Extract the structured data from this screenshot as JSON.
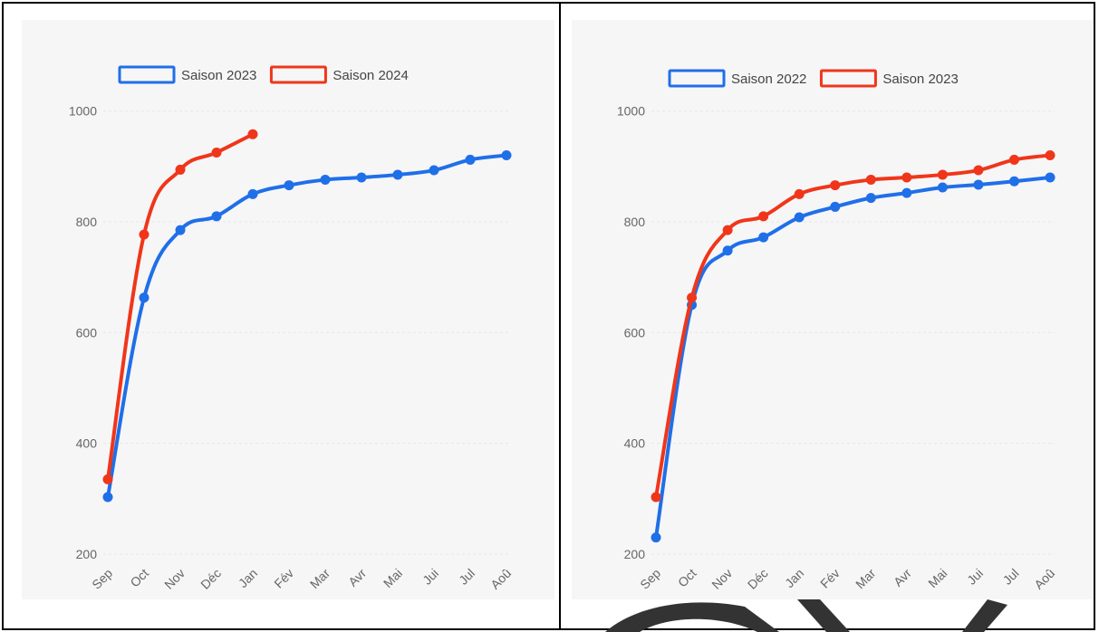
{
  "chart_data": [
    {
      "type": "line",
      "categories": [
        "Sep",
        "Oct",
        "Nov",
        "Déc",
        "Jan",
        "Fév",
        "Mar",
        "Avr",
        "Mai",
        "Jui",
        "Jul",
        "Aoû"
      ],
      "series": [
        {
          "name": "Saison 2023",
          "color": "#1f6fe8",
          "values": [
            303,
            663,
            785,
            810,
            850,
            866,
            876,
            880,
            885,
            893,
            912,
            920
          ]
        },
        {
          "name": "Saison 2024",
          "color": "#f0361a",
          "values": [
            335,
            777,
            894,
            925,
            958,
            null,
            null,
            null,
            null,
            null,
            null,
            null
          ]
        }
      ],
      "ylim": [
        200,
        1050
      ],
      "yticks": [
        200,
        400,
        600,
        800,
        1000
      ],
      "grid": true,
      "legend": "top-left"
    },
    {
      "type": "line",
      "categories": [
        "Sep",
        "Oct",
        "Nov",
        "Déc",
        "Jan",
        "Fév",
        "Mar",
        "Avr",
        "Mai",
        "Jui",
        "Jul",
        "Aoû"
      ],
      "series": [
        {
          "name": "Saison 2022",
          "color": "#1f6fe8",
          "values": [
            230,
            650,
            748,
            772,
            808,
            827,
            843,
            852,
            862,
            867,
            873,
            880
          ]
        },
        {
          "name": "Saison 2023",
          "color": "#f0361a",
          "values": [
            303,
            663,
            785,
            810,
            850,
            866,
            876,
            880,
            885,
            893,
            912,
            920
          ]
        }
      ],
      "ylim": [
        200,
        1050
      ],
      "yticks": [
        200,
        400,
        600,
        800,
        1000
      ],
      "grid": true,
      "legend": "top-left"
    }
  ]
}
